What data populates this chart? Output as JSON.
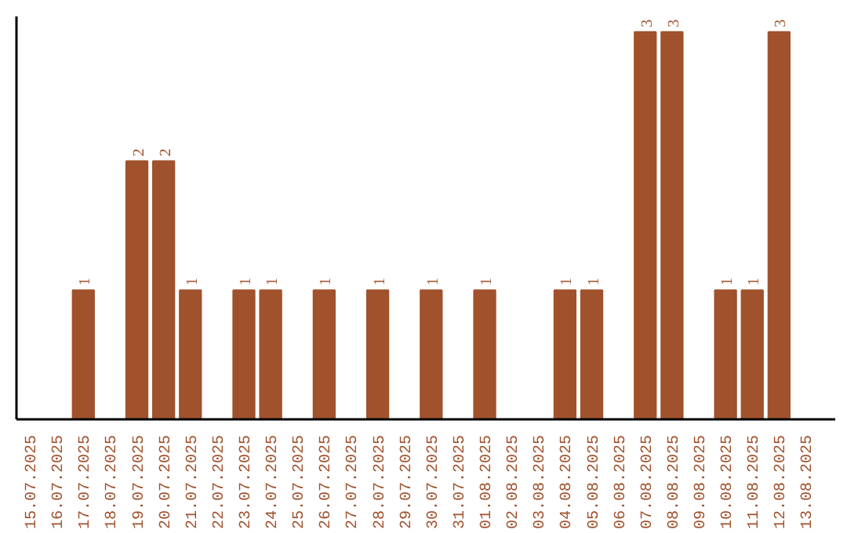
{
  "chart_data": {
    "type": "bar",
    "categories": [
      "15.07.2025",
      "16.07.2025",
      "17.07.2025",
      "18.07.2025",
      "19.07.2025",
      "20.07.2025",
      "21.07.2025",
      "22.07.2025",
      "23.07.2025",
      "24.07.2025",
      "25.07.2025",
      "26.07.2025",
      "27.07.2025",
      "28.07.2025",
      "29.07.2025",
      "30.07.2025",
      "31.07.2025",
      "01.08.2025",
      "02.08.2025",
      "03.08.2025",
      "04.08.2025",
      "05.08.2025",
      "06.08.2025",
      "07.08.2025",
      "08.08.2025",
      "09.08.2025",
      "10.08.2025",
      "11.08.2025",
      "12.08.2025",
      "13.08.2025"
    ],
    "values": [
      0,
      0,
      1,
      0,
      2,
      2,
      1,
      0,
      1,
      1,
      0,
      1,
      0,
      1,
      0,
      1,
      0,
      1,
      0,
      0,
      1,
      1,
      0,
      3,
      3,
      0,
      1,
      1,
      3,
      0
    ],
    "value_labels": [
      null,
      null,
      "1",
      null,
      "2",
      "2",
      "1",
      null,
      "1",
      "1",
      null,
      "1",
      null,
      "1",
      null,
      "1",
      null,
      "1",
      null,
      null,
      "1",
      "1",
      null,
      "3",
      "3",
      null,
      "1",
      "1",
      "3",
      null
    ],
    "color": "#a0522d",
    "ylim": [
      0,
      3.12
    ],
    "tick_labels": "x",
    "grid": false
  }
}
